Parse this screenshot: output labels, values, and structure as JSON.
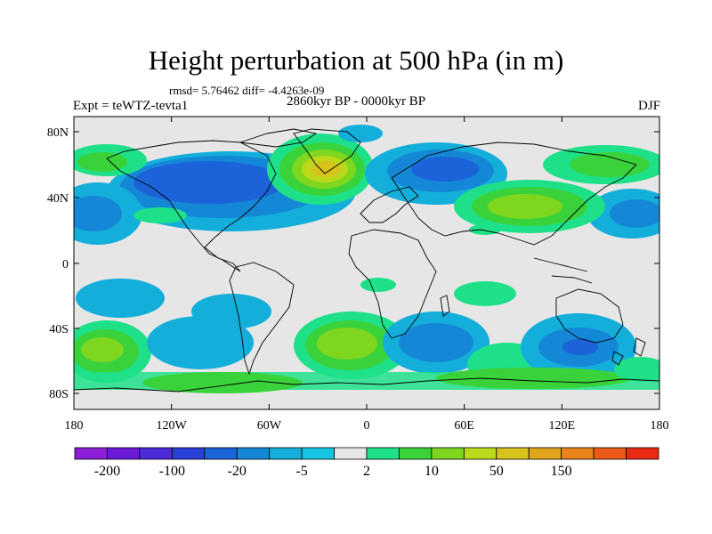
{
  "title": "Height perturbation at 500 hPa (in m)",
  "stats_line": "rmsd= 5.76462 diff= -4.4263e-09",
  "left_label": "Expt = teWTZ-tevta1",
  "center_label": "2860kyr BP - 0000kyr BP",
  "right_label": "DJF",
  "axes": {
    "lat_ticks": [
      "80N",
      "40N",
      "0",
      "40S",
      "80S"
    ],
    "lon_ticks": [
      "180",
      "120W",
      "60W",
      "0",
      "60E",
      "120E",
      "180"
    ]
  },
  "colorbar": {
    "colors": [
      "#8a1dd6",
      "#6a1ad6",
      "#4d2ad8",
      "#2a3fd9",
      "#1c62d8",
      "#1488d6",
      "#14aedb",
      "#15c3e3",
      "#e6e6e6",
      "#1ee089",
      "#3ad23a",
      "#7fd61f",
      "#bcd81a",
      "#d8c21c",
      "#e0a51c",
      "#e8841a",
      "#ec5a1a",
      "#e82a14"
    ],
    "labels": [
      "-200",
      "-100",
      "-20",
      "-5",
      "2",
      "10",
      "50",
      "150"
    ]
  },
  "palette": {
    "background_field": "#e6e6e6",
    "coast": "#000000"
  }
}
